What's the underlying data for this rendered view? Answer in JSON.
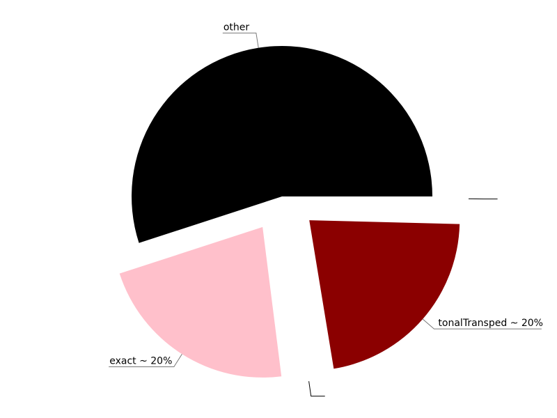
{
  "chart_data": {
    "type": "pie",
    "slices": [
      {
        "label": "other",
        "value": 55.0,
        "color": "#000000",
        "exploded": false
      },
      {
        "label": "exact ~ 20%",
        "value": 22.0,
        "color": "#ffc0cb",
        "exploded": true
      },
      {
        "label": "",
        "value": 0.6,
        "color": "#ffffff",
        "exploded": true
      },
      {
        "label": "tonalTransped ~ 20%",
        "value": 22.0,
        "color": "#8b0000",
        "exploded": true
      },
      {
        "label": "",
        "value": 0.4,
        "color": "#ffffff",
        "exploded": true
      }
    ]
  }
}
